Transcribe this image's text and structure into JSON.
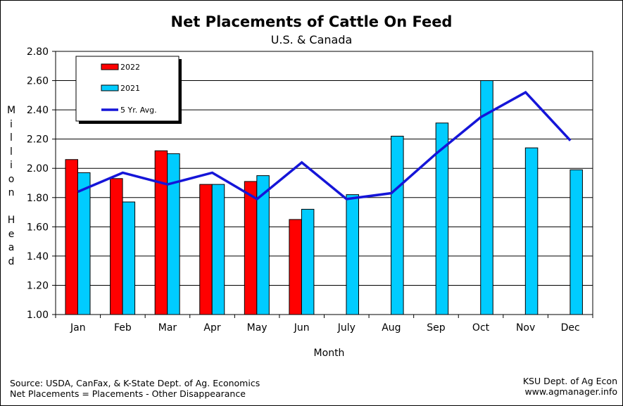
{
  "chart_data": {
    "type": "bar",
    "title": "Net Placements of Cattle On Feed",
    "subtitle": "U.S. & Canada",
    "xlabel": "Month",
    "ylabel": "Million Head",
    "ylim": [
      1.0,
      2.8
    ],
    "yticks": [
      "1.00",
      "1.20",
      "1.40",
      "1.60",
      "1.80",
      "2.00",
      "2.20",
      "2.40",
      "2.60",
      "2.80"
    ],
    "grid": true,
    "legend_position": "top-left",
    "categories": [
      "Jan",
      "Feb",
      "Mar",
      "Apr",
      "May",
      "Jun",
      "July",
      "Aug",
      "Sep",
      "Oct",
      "Nov",
      "Dec"
    ],
    "series": [
      {
        "name": "2022",
        "type": "bar",
        "color": "#ff0000",
        "values": [
          2.06,
          1.93,
          2.12,
          1.89,
          1.91,
          1.65,
          null,
          null,
          null,
          null,
          null,
          null
        ]
      },
      {
        "name": "2021",
        "type": "bar",
        "color": "#00ccff",
        "values": [
          1.97,
          1.77,
          2.1,
          1.89,
          1.95,
          1.72,
          1.82,
          2.22,
          2.31,
          2.6,
          2.14,
          1.99
        ]
      },
      {
        "name": "5 Yr. Avg.",
        "type": "line",
        "color": "#1515d8",
        "values": [
          1.84,
          1.97,
          1.89,
          1.97,
          1.79,
          2.04,
          1.79,
          1.83,
          2.1,
          2.35,
          2.52,
          2.19
        ]
      }
    ]
  },
  "footer": {
    "source": "Source: USDA, CanFax, & K-State Dept. of  Ag. Economics",
    "note": "Net Placements = Placements - Other Disappearance",
    "credit_line1": "KSU Dept. of Ag Econ",
    "credit_line2": "www.agmanager.info"
  }
}
